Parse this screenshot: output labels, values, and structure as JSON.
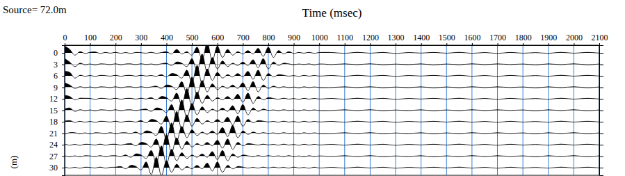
{
  "chart_data": {
    "type": "wiggle",
    "title": "Source= 72.0m",
    "x_label": "Time (msec)",
    "y_label": "(m)",
    "x": [
      0,
      20,
      40,
      60,
      80,
      100,
      120,
      140,
      160,
      180,
      200,
      220,
      240,
      260,
      280,
      300,
      320,
      340,
      360,
      380,
      400,
      420,
      440,
      460,
      480,
      500,
      520,
      540,
      560,
      580,
      600,
      620,
      640,
      660,
      680,
      700,
      720,
      740,
      760,
      780,
      800,
      820,
      840,
      860,
      880,
      900,
      920,
      940,
      960,
      980,
      1000,
      1050,
      1100,
      1150,
      1200,
      1250,
      1300,
      1350,
      1400,
      1450,
      1500,
      1550,
      1600,
      1650,
      1700,
      1750,
      1800,
      1850,
      1900,
      1950,
      2000,
      2050,
      2100
    ],
    "series": [
      {
        "offset": 0,
        "color": "#000000",
        "values": [
          0.6,
          0.3,
          -0.2,
          0.1,
          -0.05,
          0.05,
          0.08,
          -0.05,
          0.04,
          -0.03,
          0.05,
          -0.04,
          0.03,
          -0.05,
          0.04,
          0.02,
          -0.03,
          0.05,
          -0.04,
          0.03,
          0.1,
          -0.1,
          0.3,
          -0.1,
          0.1,
          -0.2,
          0.5,
          -0.6,
          0.9,
          -0.7,
          0.6,
          -0.4,
          0.3,
          -0.2,
          0.1,
          -0.1,
          0.2,
          -0.1,
          0.4,
          -0.3,
          0.5,
          -0.4,
          0.2,
          -0.1,
          0.1,
          -0.05,
          0.04,
          -0.03,
          0.05,
          -0.04,
          0.03,
          0.03,
          -0.04,
          0.05,
          -0.03,
          0.04,
          -0.05,
          0.03,
          -0.02,
          0.04,
          -0.03,
          0.05,
          -0.04,
          0.03,
          -0.05,
          0.04,
          -0.03,
          0.02,
          -0.04,
          0.05,
          -0.03,
          0.04,
          -0.02
        ]
      },
      {
        "offset": 3,
        "color": "#000000",
        "values": [
          0.5,
          0.2,
          -0.2,
          0.1,
          -0.04,
          0.03,
          -0.05,
          0.04,
          0.02,
          -0.03,
          0.05,
          -0.04,
          0.03,
          0.04,
          -0.03,
          0.05,
          -0.02,
          0.03,
          -0.04,
          0.05,
          0.1,
          -0.1,
          0.2,
          0.1,
          -0.2,
          0.5,
          -0.6,
          0.9,
          -0.7,
          0.6,
          -0.4,
          0.3,
          -0.2,
          0.1,
          -0.1,
          0.2,
          -0.1,
          0.4,
          -0.3,
          0.5,
          -0.4,
          0.2,
          -0.1,
          0.1,
          0.04,
          -0.03,
          0.03,
          -0.02,
          0.04,
          -0.05,
          0.03,
          -0.02,
          0.04,
          -0.03,
          0.05,
          -0.04,
          0.02,
          -0.03,
          0.04,
          -0.05,
          0.03,
          -0.04,
          0.05,
          -0.03,
          0.04,
          -0.02,
          0.03,
          -0.05,
          0.04,
          -0.03,
          0.05,
          -0.04,
          0.03
        ]
      },
      {
        "offset": 6,
        "color": "#000000",
        "values": [
          0.4,
          0.3,
          -0.2,
          0.05,
          -0.04,
          0.03,
          -0.05,
          0.04,
          0.02,
          -0.03,
          0.05,
          -0.04,
          0.03,
          0.04,
          -0.03,
          0.05,
          -0.02,
          0.03,
          -0.04,
          0.1,
          -0.1,
          0.2,
          0.1,
          -0.2,
          0.5,
          -0.6,
          0.9,
          -0.7,
          0.6,
          -0.4,
          0.3,
          -0.2,
          0.1,
          -0.1,
          0.2,
          -0.1,
          0.4,
          -0.3,
          0.5,
          -0.4,
          0.2,
          -0.1,
          0.1,
          0.05,
          -0.03,
          0.02,
          -0.05,
          0.04,
          -0.03,
          0.03,
          -0.02,
          0.03,
          -0.04,
          0.05,
          -0.03,
          0.04,
          -0.05,
          0.03,
          -0.02,
          0.04,
          -0.03,
          0.05,
          -0.04,
          0.03,
          -0.05,
          0.04,
          -0.03,
          0.02,
          -0.04,
          0.05,
          -0.03,
          0.04,
          -0.02
        ]
      },
      {
        "offset": 9,
        "color": "#000000",
        "values": [
          0.4,
          0.2,
          -0.1,
          0.05,
          -0.04,
          0.03,
          -0.05,
          0.04,
          0.02,
          -0.03,
          0.05,
          -0.04,
          0.03,
          0.04,
          -0.03,
          0.05,
          -0.02,
          0.03,
          0.1,
          -0.1,
          0.2,
          0.1,
          -0.2,
          0.5,
          -0.6,
          0.9,
          -0.7,
          0.6,
          -0.4,
          0.3,
          -0.2,
          0.1,
          -0.1,
          0.2,
          -0.1,
          0.4,
          -0.3,
          0.5,
          -0.4,
          0.2,
          -0.1,
          0.1,
          -0.04,
          0.05,
          -0.03,
          0.02,
          -0.05,
          0.04,
          -0.03,
          0.03,
          -0.02,
          -0.02,
          0.04,
          -0.03,
          0.05,
          -0.04,
          0.02,
          -0.03,
          0.04,
          -0.05,
          0.03,
          -0.04,
          0.05,
          -0.03,
          0.04,
          -0.02,
          0.03,
          -0.05,
          0.04,
          -0.03,
          0.05,
          -0.04,
          0.03
        ]
      },
      {
        "offset": 12,
        "color": "#000000",
        "values": [
          0.3,
          0.2,
          -0.1,
          0.05,
          0.04,
          0.03,
          -0.05,
          0.04,
          0.02,
          -0.03,
          0.05,
          -0.04,
          0.03,
          0.04,
          -0.03,
          0.05,
          -0.02,
          0.1,
          -0.1,
          0.2,
          0.1,
          -0.2,
          0.5,
          -0.6,
          0.9,
          -0.7,
          0.6,
          -0.4,
          0.3,
          -0.2,
          0.1,
          -0.1,
          0.2,
          -0.1,
          0.4,
          -0.3,
          0.5,
          -0.4,
          0.2,
          -0.1,
          0.1,
          0.03,
          -0.04,
          0.05,
          -0.03,
          0.02,
          -0.05,
          0.04,
          -0.03,
          0.03,
          -0.02,
          0.03,
          -0.04,
          0.05,
          -0.03,
          0.04,
          -0.05,
          0.03,
          -0.02,
          0.04,
          -0.03,
          0.05,
          -0.04,
          0.03,
          -0.05,
          0.04,
          -0.03,
          0.02,
          -0.04,
          0.05,
          -0.03,
          0.04,
          -0.02
        ]
      },
      {
        "offset": 15,
        "color": "#000000",
        "values": [
          0.1,
          0.2,
          -0.1,
          0.05,
          -0.04,
          0.03,
          -0.05,
          0.04,
          0.02,
          -0.03,
          0.05,
          -0.04,
          0.03,
          0.04,
          -0.03,
          0.05,
          0.1,
          -0.1,
          0.2,
          0.1,
          -0.2,
          0.5,
          -0.6,
          0.9,
          -0.7,
          0.6,
          -0.4,
          0.3,
          -0.2,
          0.1,
          -0.1,
          0.2,
          -0.1,
          0.4,
          -0.3,
          0.5,
          -0.4,
          0.2,
          -0.1,
          0.1,
          -0.02,
          0.03,
          -0.04,
          0.05,
          -0.03,
          0.02,
          -0.05,
          0.04,
          -0.03,
          0.03,
          -0.02,
          -0.02,
          0.04,
          -0.03,
          0.05,
          -0.04,
          0.02,
          -0.03,
          0.04,
          -0.05,
          0.03,
          -0.04,
          0.05,
          -0.03,
          0.04,
          -0.02,
          0.03,
          -0.05,
          0.04,
          -0.03,
          0.05,
          -0.04,
          0.03
        ]
      },
      {
        "offset": 18,
        "color": "#000000",
        "values": [
          0.05,
          0.1,
          -0.05,
          0.04,
          -0.04,
          0.03,
          -0.05,
          0.04,
          0.02,
          -0.03,
          0.05,
          -0.04,
          0.03,
          0.04,
          -0.03,
          0.1,
          -0.1,
          0.2,
          0.1,
          -0.2,
          0.5,
          -0.6,
          0.9,
          -0.7,
          0.6,
          -0.4,
          0.3,
          -0.2,
          0.1,
          -0.1,
          0.2,
          -0.1,
          0.4,
          -0.3,
          0.5,
          -0.4,
          0.2,
          -0.1,
          0.1,
          0.05,
          -0.02,
          0.03,
          -0.04,
          0.05,
          -0.03,
          0.02,
          -0.05,
          0.04,
          -0.03,
          0.03,
          -0.02,
          0.03,
          -0.04,
          0.05,
          -0.03,
          0.04,
          -0.05,
          0.03,
          -0.02,
          0.04,
          -0.03,
          0.05,
          -0.04,
          0.03,
          -0.05,
          0.04,
          -0.03,
          0.02,
          -0.04,
          0.05,
          -0.03,
          0.04,
          -0.02
        ]
      },
      {
        "offset": 21,
        "color": "#000000",
        "values": [
          -0.1,
          0.05,
          0.04,
          -0.04,
          0.03,
          -0.05,
          0.04,
          0.02,
          -0.03,
          0.05,
          -0.04,
          0.03,
          0.04,
          -0.03,
          0.1,
          -0.1,
          0.2,
          0.1,
          -0.2,
          0.6,
          -0.6,
          0.9,
          -0.7,
          0.6,
          -0.4,
          0.3,
          -0.2,
          0.1,
          -0.1,
          0.2,
          -0.1,
          0.5,
          -0.3,
          0.7,
          -0.4,
          0.2,
          -0.1,
          0.1,
          -0.03,
          0.05,
          -0.02,
          0.03,
          -0.04,
          0.05,
          -0.03,
          0.02,
          -0.05,
          0.04,
          -0.03,
          0.03,
          -0.02,
          -0.02,
          0.04,
          -0.03,
          0.05,
          -0.04,
          0.02,
          -0.03,
          0.04,
          -0.05,
          0.03,
          -0.04,
          0.05,
          -0.03,
          0.04,
          -0.02,
          0.03,
          -0.05,
          0.04,
          -0.03,
          0.05,
          -0.04,
          0.03
        ]
      },
      {
        "offset": 24,
        "color": "#000000",
        "values": [
          0.05,
          -0.04,
          0.03,
          -0.05,
          0.04,
          0.02,
          -0.03,
          0.05,
          -0.04,
          0.03,
          0.04,
          -0.03,
          0.05,
          0.1,
          -0.1,
          0.2,
          0.1,
          -0.2,
          0.5,
          -0.6,
          0.9,
          -0.7,
          0.6,
          -0.4,
          0.3,
          -0.2,
          0.1,
          -0.1,
          0.2,
          -0.1,
          0.4,
          -0.3,
          0.5,
          -0.4,
          0.2,
          -0.1,
          0.1,
          0.04,
          -0.03,
          0.05,
          -0.02,
          0.03,
          -0.04,
          0.05,
          -0.03,
          0.02,
          -0.05,
          0.04,
          -0.03,
          0.03,
          -0.02,
          0.03,
          -0.04,
          0.05,
          -0.03,
          0.04,
          -0.05,
          0.03,
          -0.02,
          0.04,
          -0.03,
          0.05,
          -0.04,
          0.03,
          -0.05,
          0.04,
          -0.03,
          0.02,
          -0.04,
          0.05,
          -0.03,
          0.04,
          -0.02
        ]
      },
      {
        "offset": 27,
        "color": "#000000",
        "values": [
          0.05,
          -0.04,
          0.03,
          -0.05,
          0.04,
          0.02,
          -0.03,
          0.05,
          -0.04,
          0.03,
          0.04,
          -0.03,
          0.1,
          -0.1,
          0.2,
          0.1,
          -0.2,
          0.5,
          -0.6,
          0.9,
          -0.7,
          0.6,
          -0.4,
          0.3,
          -0.2,
          0.1,
          -0.1,
          0.2,
          -0.1,
          0.4,
          -0.3,
          0.5,
          -0.4,
          0.2,
          -0.1,
          0.1,
          0.03,
          -0.04,
          0.05,
          -0.03,
          0.05,
          -0.02,
          0.03,
          -0.04,
          0.05,
          -0.03,
          0.02,
          -0.05,
          0.04,
          -0.03,
          0.02,
          -0.02,
          0.04,
          -0.03,
          0.05,
          -0.04,
          0.02,
          -0.03,
          0.04,
          -0.05,
          0.03,
          -0.04,
          0.05,
          -0.03,
          0.04,
          -0.02,
          0.03,
          -0.05,
          0.04,
          -0.03,
          0.05,
          -0.04,
          0.03
        ]
      },
      {
        "offset": 30,
        "color": "#000000",
        "values": [
          0.05,
          -0.04,
          0.03,
          -0.05,
          0.04,
          0.02,
          -0.03,
          0.05,
          -0.04,
          0.03,
          0.04,
          0.1,
          -0.1,
          0.2,
          0.1,
          -0.2,
          0.5,
          -0.6,
          0.9,
          -0.7,
          0.6,
          -0.4,
          0.3,
          -0.2,
          0.1,
          -0.1,
          0.2,
          -0.1,
          0.4,
          -0.3,
          0.5,
          -0.4,
          0.2,
          -0.1,
          0.1,
          0.05,
          -0.04,
          0.03,
          -0.04,
          0.05,
          -0.03,
          0.05,
          -0.02,
          0.03,
          -0.04,
          0.05,
          -0.03,
          0.02,
          -0.05,
          0.04,
          -0.03,
          0.03,
          -0.04,
          0.05,
          -0.03,
          0.04,
          -0.05,
          0.03,
          -0.02,
          0.04,
          -0.03,
          0.05,
          -0.04,
          0.03,
          -0.05,
          0.04,
          -0.03,
          0.02,
          -0.04,
          0.05,
          -0.03,
          0.04,
          -0.02
        ]
      }
    ],
    "xlim": [
      0,
      2100
    ],
    "xticks": [
      0,
      100,
      200,
      300,
      400,
      500,
      600,
      700,
      800,
      900,
      1000,
      1100,
      1200,
      1300,
      1400,
      1500,
      1600,
      1700,
      1800,
      1900,
      2000,
      2100
    ],
    "ylim": [
      -2,
      32
    ],
    "yticks": [
      0,
      3,
      6,
      9,
      12,
      15,
      18,
      21,
      24,
      27,
      30
    ],
    "grid": true
  }
}
